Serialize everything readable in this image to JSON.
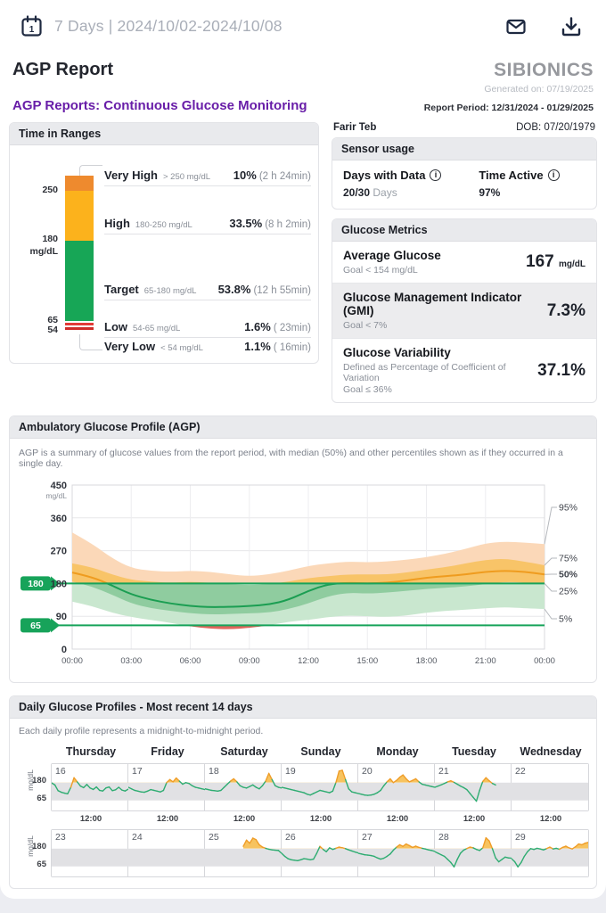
{
  "appbar": {
    "range_label": "7 Days | 2024/10/02-2024/10/08",
    "icons": {
      "calendar": "calendar-with-day-1",
      "mail": "envelope",
      "download": "download-arrow-tray"
    }
  },
  "report": {
    "title": "AGP Report",
    "brand": "SIBIONICS",
    "generated": "Generated on: 07/19/2025",
    "subtitle": "AGP Reports: Continuous Glucose Monitoring",
    "period": "Report Period: 12/31/2024 - 01/29/2025",
    "patient_name": "Farir Teb",
    "dob": "DOB: 07/20/1979"
  },
  "time_in_ranges": {
    "title": "Time in Ranges",
    "axis": {
      "v250": "250",
      "v180": "180",
      "unit": "mg/dL",
      "v65": "65",
      "v54": "54"
    },
    "rows": [
      {
        "label": "Very High",
        "range": "> 250 mg/dL",
        "percent": "10%",
        "duration": "(2 h 24min)",
        "color": "#ee8a2e",
        "bar_pct": 10
      },
      {
        "label": "High",
        "range": "180-250 mg/dL",
        "percent": "33.5%",
        "duration": "(8 h 2min)",
        "color": "#fcb21c",
        "bar_pct": 33.5
      },
      {
        "label": "Target",
        "range": "65-180 mg/dL",
        "percent": "53.8%",
        "duration": "(12 h 55min)",
        "color": "#17a656",
        "bar_pct": 53.8
      },
      {
        "label": "Low",
        "range": "54-65 mg/dL",
        "percent": "1.6%",
        "duration": "( 23min)",
        "color": "#e23b36",
        "bar_pct": 1.6
      },
      {
        "label": "Very Low",
        "range": "< 54 mg/dL",
        "percent": "1.1%",
        "duration": "( 16min)",
        "color": "#cf2b27",
        "bar_pct": 1.1
      }
    ]
  },
  "sensor_usage": {
    "title": "Sensor usage",
    "days_label": "Days with Data",
    "days_value": "20/30",
    "days_unit": "Days",
    "active_label": "Time Active",
    "active_value": "97%",
    "info_glyph": "i"
  },
  "glucose_metrics": {
    "title": "Glucose Metrics",
    "rows": [
      {
        "name": "Average Glucose",
        "goal": "Goal < 154 mg/dL",
        "value": "167",
        "unit": "mg/dL"
      },
      {
        "name": "Glucose Management Indicator (GMI)",
        "goal": "Goal < 7%",
        "value": "7.3%",
        "unit": ""
      },
      {
        "name": "Glucose Variability",
        "goal": "Defined as Percentage of Coefficient of Variation",
        "goal2": "Goal ≤ 36%",
        "value": "37.1%",
        "unit": ""
      }
    ]
  },
  "agp": {
    "title": "Ambulatory Glucose Profile (AGP)",
    "description": "AGP is a summary of glucose values from the report period, with median (50%) and other percentiles shown as if they occurred in a single day."
  },
  "daily": {
    "title": "Daily Glucose Profiles - Most recent 14 days",
    "description": "Each daily profile represents a midnight-to-midnight period.",
    "unit": "mg/dL",
    "t180": "180",
    "t65": "65",
    "tick": "12:00"
  },
  "chart_data": [
    {
      "type": "area",
      "title": "Ambulatory Glucose Profile (AGP)",
      "x_hours": [
        0,
        1,
        2,
        3,
        4,
        5,
        6,
        7,
        8,
        9,
        10,
        11,
        12,
        13,
        14,
        15,
        16,
        17,
        18,
        19,
        20,
        21,
        22,
        23,
        24
      ],
      "series": [
        {
          "name": "p5",
          "values": [
            130,
            118,
            100,
            88,
            80,
            72,
            62,
            56,
            54,
            58,
            65,
            75,
            80,
            88,
            92,
            90,
            88,
            92,
            100,
            105,
            108,
            112,
            115,
            112,
            110
          ]
        },
        {
          "name": "p25",
          "values": [
            185,
            172,
            150,
            125,
            112,
            105,
            98,
            95,
            96,
            98,
            100,
            110,
            125,
            145,
            155,
            152,
            155,
            160,
            165,
            168,
            172,
            178,
            185,
            182,
            180
          ]
        },
        {
          "name": "p50",
          "values": [
            210,
            198,
            175,
            150,
            135,
            125,
            118,
            115,
            116,
            118,
            122,
            135,
            160,
            178,
            182,
            180,
            182,
            188,
            196,
            200,
            205,
            212,
            215,
            212,
            205
          ]
        },
        {
          "name": "p75",
          "values": [
            235,
            225,
            205,
            190,
            185,
            182,
            185,
            182,
            178,
            175,
            178,
            185,
            195,
            200,
            205,
            205,
            205,
            210,
            218,
            225,
            235,
            245,
            248,
            240,
            230
          ]
        },
        {
          "name": "p95",
          "values": [
            320,
            290,
            250,
            222,
            215,
            212,
            215,
            212,
            205,
            200,
            205,
            215,
            228,
            235,
            240,
            238,
            240,
            245,
            252,
            262,
            275,
            290,
            295,
            292,
            288
          ]
        }
      ],
      "ylim": [
        0,
        450
      ],
      "y_ticks": [
        "450",
        "360",
        "270",
        "180",
        "90",
        "0"
      ],
      "y_unit": "mg/dL",
      "x_ticks": [
        "00:00",
        "03:00",
        "06:00",
        "09:00",
        "12:00",
        "15:00",
        "18:00",
        "21:00",
        "00:00"
      ],
      "target_lines": [
        180,
        65
      ],
      "target_badges": [
        "180",
        "65"
      ],
      "percentile_labels": [
        "95%",
        "75%",
        "50%",
        "25%",
        "5%"
      ],
      "grid": true,
      "legend_position": "right"
    },
    {
      "type": "line",
      "title": "Daily Glucose Profiles - Most recent 14 days",
      "ylim": [
        0,
        300
      ],
      "thresholds": {
        "high": 180,
        "low": 65
      },
      "weekdays": [
        "Thursday",
        "Friday",
        "Saturday",
        "Sunday",
        "Monday",
        "Tuesday",
        "Wednesday"
      ],
      "rows": [
        {
          "days": [
            {
              "num": "16",
              "values": [
                178,
                165,
                128,
                118,
                112,
                108,
                150,
                212,
                185,
                158,
                148,
                168,
                146,
                136,
                152,
                130,
                126,
                146,
                152,
                128,
                134,
                150,
                132,
                126,
                138
              ]
            },
            {
              "num": "17",
              "values": [
                150,
                140,
                130,
                125,
                120,
                118,
                125,
                135,
                130,
                125,
                120,
                130,
                180,
                200,
                185,
                210,
                190,
                170,
                180,
                175,
                160,
                150,
                145,
                140,
                135
              ]
            },
            {
              "num": "18",
              "values": [
                140,
                135,
                130,
                128,
                125,
                130,
                150,
                170,
                190,
                205,
                185,
                160,
                150,
                145,
                155,
                165,
                150,
                140,
                160,
                190,
                240,
                200,
                160,
                150,
                145
              ]
            },
            {
              "num": "19",
              "values": [
                150,
                145,
                140,
                135,
                130,
                125,
                120,
                115,
                105,
                100,
                110,
                120,
                130,
                125,
                120,
                115,
                125,
                180,
                255,
                260,
                200,
                140,
                120,
                115,
                110
              ]
            },
            {
              "num": "20",
              "values": [
                110,
                105,
                100,
                98,
                100,
                105,
                115,
                130,
                160,
                185,
                205,
                180,
                195,
                215,
                230,
                205,
                185,
                195,
                205,
                185,
                170,
                165,
                160,
                155,
                150
              ]
            },
            {
              "num": "21",
              "values": [
                150,
                158,
                166,
                175,
                185,
                192,
                182,
                170,
                158,
                148,
                135,
                110,
                85,
                60,
                130,
                188,
                212,
                192,
                175,
                165,
                null,
                null,
                null,
                null,
                null
              ]
            },
            {
              "num": "22",
              "values": [
                null,
                null,
                null,
                null,
                null,
                null,
                null,
                null,
                null,
                null,
                null,
                null,
                null,
                null,
                null,
                null,
                null,
                null,
                null,
                null,
                null,
                null,
                null,
                null,
                null
              ]
            }
          ]
        },
        {
          "days": [
            {
              "num": "23",
              "values": [
                null,
                null,
                null,
                null,
                null,
                null,
                null,
                null,
                null,
                null,
                null,
                null,
                null,
                null,
                null,
                null,
                null,
                null,
                null,
                null,
                null,
                null,
                null,
                null,
                null
              ]
            },
            {
              "num": "24",
              "values": [
                null,
                null,
                null,
                null,
                null,
                null,
                null,
                null,
                null,
                null,
                null,
                null,
                null,
                null,
                null,
                null,
                null,
                null,
                null,
                null,
                null,
                null,
                null,
                null,
                null
              ]
            },
            {
              "num": "25",
              "values": [
                null,
                null,
                null,
                null,
                null,
                null,
                null,
                null,
                null,
                null,
                null,
                null,
                195,
                235,
                215,
                248,
                238,
                205,
                190,
                182,
                176,
                172,
                170,
                168,
                150
              ]
            },
            {
              "num": "26",
              "values": [
                150,
                130,
                115,
                108,
                105,
                102,
                108,
                115,
                112,
                108,
                112,
                150,
                195,
                175,
                160,
                185,
                175,
                182,
                190,
                186,
                180,
                172,
                165,
                158,
                152
              ]
            },
            {
              "num": "27",
              "values": [
                150,
                145,
                140,
                138,
                135,
                130,
                120,
                112,
                118,
                130,
                145,
                170,
                190,
                205,
                195,
                210,
                200,
                188,
                196,
                188,
                182,
                178,
                172,
                168,
                162
              ]
            },
            {
              "num": "28",
              "values": [
                160,
                150,
                140,
                130,
                110,
                90,
                62,
                110,
                150,
                170,
                180,
                190,
                185,
                175,
                168,
                185,
                250,
                230,
                180,
                120,
                95,
                110,
                125,
                120,
                118
              ]
            },
            {
              "num": "29",
              "values": [
                115,
                95,
                62,
                90,
                130,
                160,
                180,
                175,
                182,
                178,
                172,
                180,
                190,
                178,
                182,
                176,
                188,
                196,
                185,
                178,
                192,
                210,
                205,
                215,
                220
              ]
            }
          ]
        }
      ]
    }
  ],
  "colors": {
    "accent_green": "#17a35a",
    "band_outer_high": "#fbd8b8",
    "band_inner_high": "#f8c468",
    "band_outer_mid": "#c9e7cf",
    "band_inner_mid": "#8fcc9f",
    "band_low_red": "#e0655c",
    "median_high": "#ef9c1f",
    "median_mid": "#1b9e52",
    "daily_band": "#e1e1e4",
    "daily_fill": "#f7c35f",
    "trace_green": "#2eac71",
    "trace_orange": "#ef9d28",
    "trace_red": "#d64541"
  }
}
